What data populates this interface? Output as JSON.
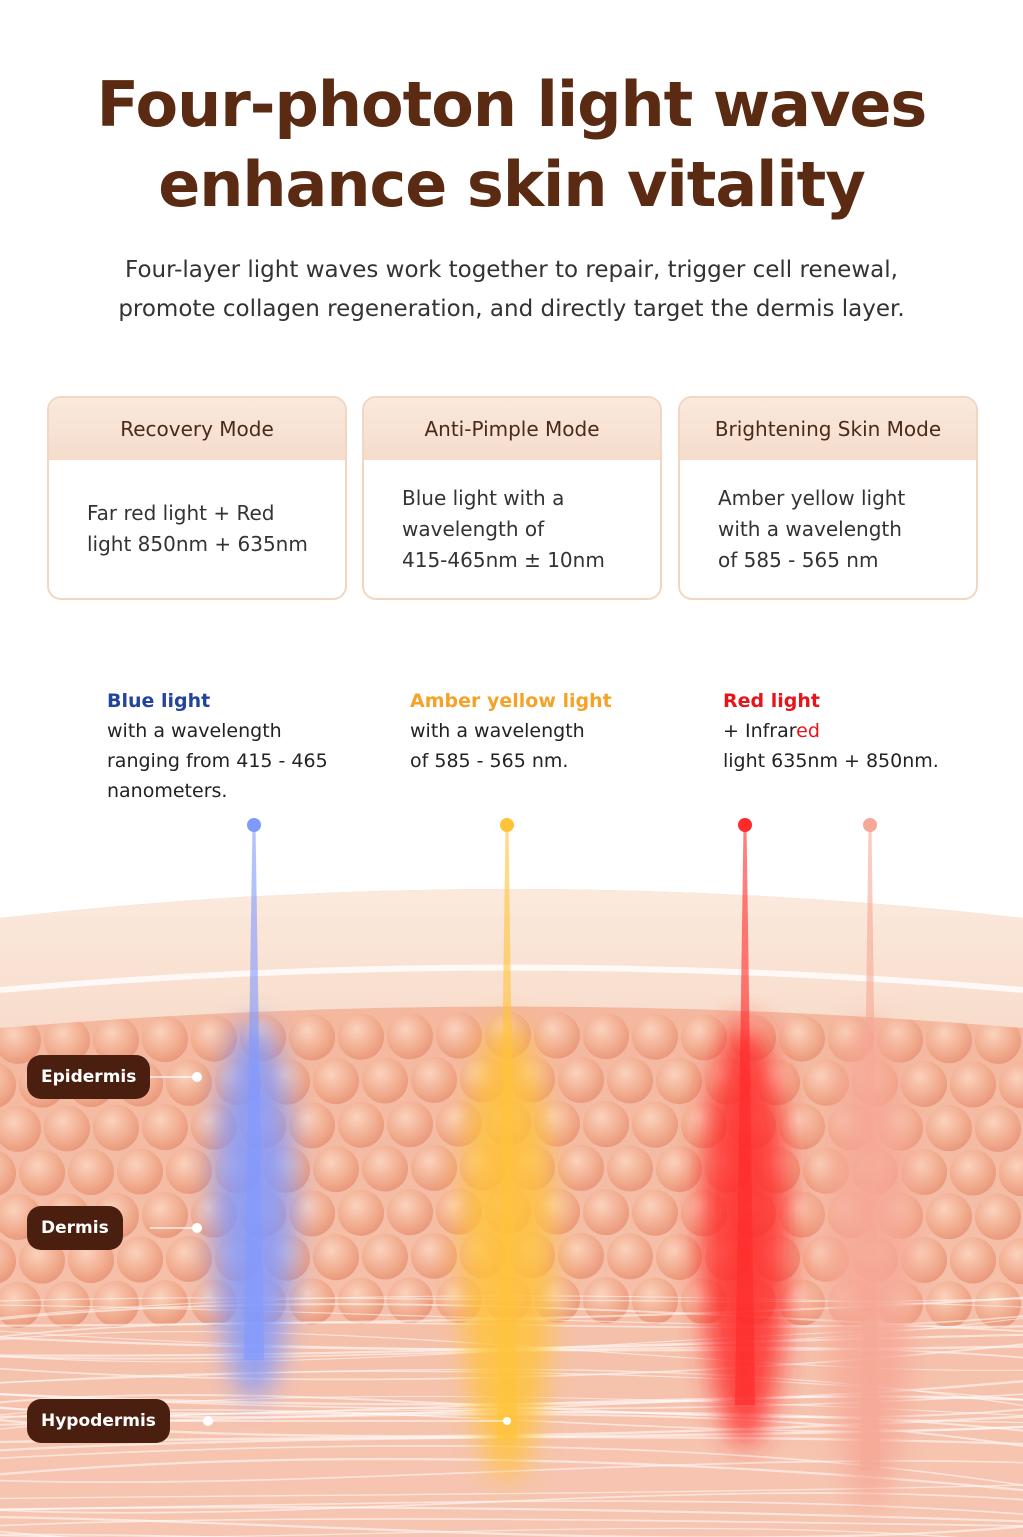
{
  "title_lines": [
    "Four-photon light waves",
    "enhance skin vitality"
  ],
  "subtitle_lines": [
    "Four-layer light waves work together to repair, trigger cell renewal,",
    "promote collagen regeneration, and directly target the dermis layer."
  ],
  "modes": [
    {
      "header": "Recovery Mode",
      "body": [
        "Far red light + Red",
        "light 850nm + 635nm"
      ]
    },
    {
      "header": "Anti-Pimple Mode",
      "body": [
        "Blue light with a",
        "wavelength of",
        "415-465nm ± 10nm"
      ]
    },
    {
      "header": "Brightening Skin Mode",
      "body": [
        "Amber yellow light",
        "with a wavelength",
        "of 585 - 565 nm"
      ]
    }
  ],
  "lights": [
    {
      "name": "Blue light",
      "lines": [
        "with a wavelength",
        "ranging from 415 - 465",
        "nanometers."
      ]
    },
    {
      "name": "Amber yellow light",
      "lines": [
        "with a wavelength",
        "of 585 - 565 nm."
      ]
    },
    {
      "name": "Red light",
      "infrared": [
        "+ Infrar",
        "ed"
      ],
      "lines": [
        "light 635nm + 850nm."
      ]
    }
  ],
  "layers": [
    "Epidermis",
    "Dermis",
    "Hypodermis"
  ]
}
